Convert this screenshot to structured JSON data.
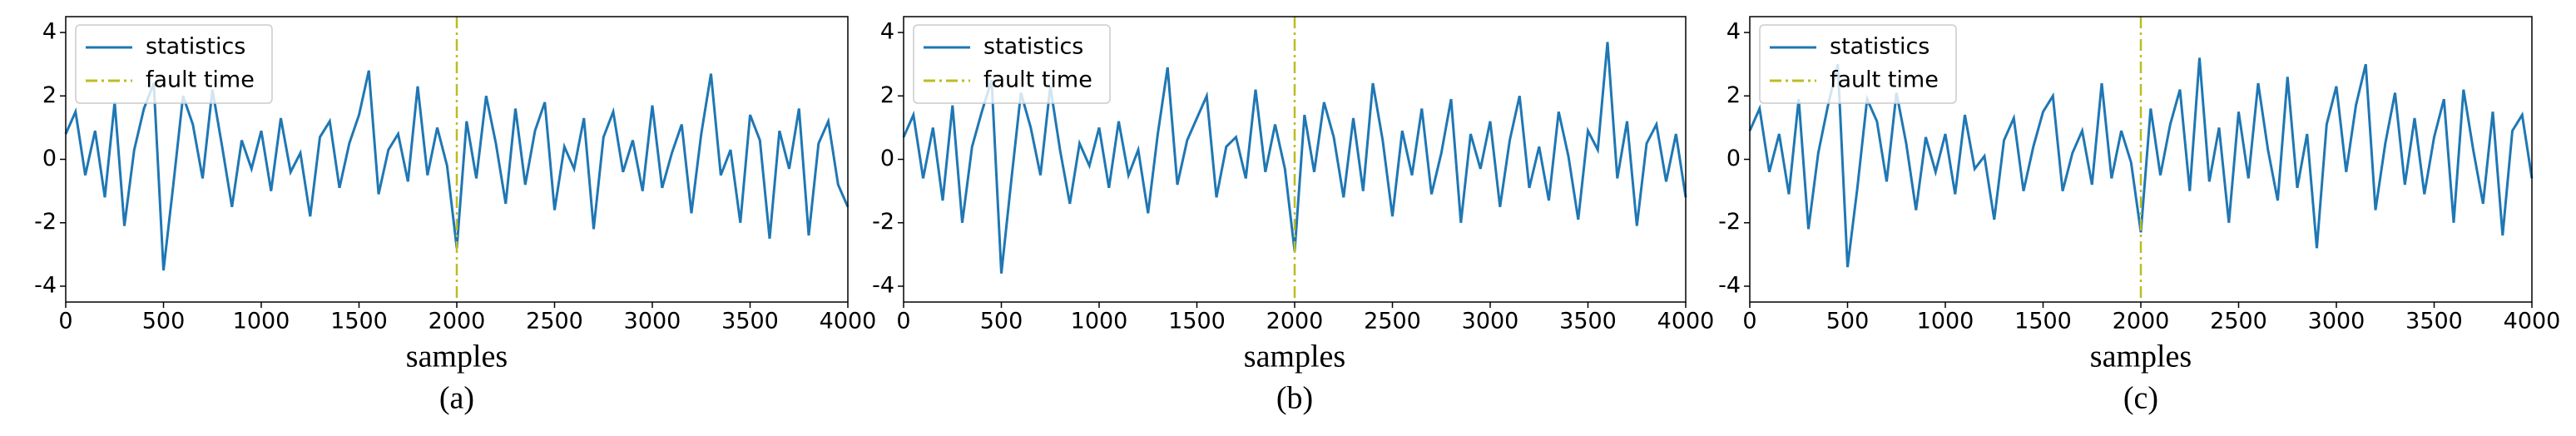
{
  "chart_data": [
    {
      "type": "line",
      "caption": "(a)",
      "xlabel": "samples",
      "x": [
        0,
        50,
        100,
        150,
        200,
        250,
        300,
        350,
        400,
        450,
        500,
        550,
        600,
        650,
        700,
        750,
        800,
        850,
        900,
        950,
        1000,
        1050,
        1100,
        1150,
        1200,
        1250,
        1300,
        1350,
        1400,
        1450,
        1500,
        1550,
        1600,
        1650,
        1700,
        1750,
        1800,
        1850,
        1900,
        1950,
        2000,
        2050,
        2100,
        2150,
        2200,
        2250,
        2300,
        2350,
        2400,
        2450,
        2500,
        2550,
        2600,
        2650,
        2700,
        2750,
        2800,
        2850,
        2900,
        2950,
        3000,
        3050,
        3100,
        3150,
        3200,
        3250,
        3300,
        3350,
        3400,
        3450,
        3500,
        3550,
        3600,
        3650,
        3700,
        3750,
        3800,
        3850,
        3900,
        3950,
        4000
      ],
      "series": [
        {
          "name": "statistics",
          "color": "#1f77b4",
          "values": [
            0.8,
            1.5,
            -0.5,
            0.9,
            -1.2,
            1.8,
            -2.1,
            0.3,
            1.6,
            2.4,
            -3.5,
            -0.8,
            2.0,
            1.1,
            -0.6,
            2.2,
            0.4,
            -1.5,
            0.6,
            -0.3,
            0.9,
            -1.0,
            1.3,
            -0.4,
            0.2,
            -1.8,
            0.7,
            1.2,
            -0.9,
            0.5,
            1.4,
            2.8,
            -1.1,
            0.3,
            0.8,
            -0.7,
            2.3,
            -0.5,
            1.0,
            -0.2,
            -2.8,
            1.2,
            -0.6,
            2.0,
            0.5,
            -1.4,
            1.6,
            -0.8,
            0.9,
            1.8,
            -1.6,
            0.4,
            -0.3,
            1.3,
            -2.2,
            0.7,
            1.5,
            -0.4,
            0.6,
            -1.0,
            1.7,
            -0.9,
            0.2,
            1.1,
            -1.7,
            0.8,
            2.7,
            -0.5,
            0.3,
            -2.0,
            1.4,
            0.6,
            -2.5,
            0.9,
            -0.3,
            1.6,
            -2.4,
            0.5,
            1.2,
            -0.8,
            -1.5
          ]
        }
      ],
      "vlines": [
        {
          "name": "fault time",
          "x": 2000,
          "color": "#bcbd22"
        }
      ],
      "xlim": [
        0,
        4000
      ],
      "xticks": [
        0,
        500,
        1000,
        1500,
        2000,
        2500,
        3000,
        3500,
        4000
      ],
      "ylim": [
        -4.5,
        4.5
      ],
      "yticks": [
        -4,
        -2,
        0,
        2,
        4
      ],
      "legend": "upper left"
    },
    {
      "type": "line",
      "caption": "(b)",
      "xlabel": "samples",
      "x": [
        0,
        50,
        100,
        150,
        200,
        250,
        300,
        350,
        400,
        450,
        500,
        550,
        600,
        650,
        700,
        750,
        800,
        850,
        900,
        950,
        1000,
        1050,
        1100,
        1150,
        1200,
        1250,
        1300,
        1350,
        1400,
        1450,
        1500,
        1550,
        1600,
        1650,
        1700,
        1750,
        1800,
        1850,
        1900,
        1950,
        2000,
        2050,
        2100,
        2150,
        2200,
        2250,
        2300,
        2350,
        2400,
        2450,
        2500,
        2550,
        2600,
        2650,
        2700,
        2750,
        2800,
        2850,
        2900,
        2950,
        3000,
        3050,
        3100,
        3150,
        3200,
        3250,
        3300,
        3350,
        3400,
        3450,
        3500,
        3550,
        3600,
        3650,
        3700,
        3750,
        3800,
        3850,
        3900,
        3950,
        4000
      ],
      "series": [
        {
          "name": "statistics",
          "color": "#1f77b4",
          "values": [
            0.7,
            1.4,
            -0.6,
            1.0,
            -1.3,
            1.7,
            -2.0,
            0.4,
            1.5,
            2.5,
            -3.6,
            -0.7,
            2.1,
            1.0,
            -0.5,
            2.3,
            0.3,
            -1.4,
            0.5,
            -0.2,
            1.0,
            -0.9,
            1.2,
            -0.5,
            0.3,
            -1.7,
            0.8,
            2.9,
            -0.8,
            0.6,
            1.3,
            2.0,
            -1.2,
            0.4,
            0.7,
            -0.6,
            2.2,
            -0.4,
            1.1,
            -0.3,
            -2.9,
            1.4,
            -0.4,
            1.8,
            0.7,
            -1.2,
            1.3,
            -1.0,
            2.4,
            0.6,
            -1.8,
            0.9,
            -0.5,
            1.6,
            -1.1,
            0.2,
            1.9,
            -2.0,
            0.8,
            -0.3,
            1.2,
            -1.5,
            0.6,
            2.0,
            -0.9,
            0.4,
            -1.3,
            1.5,
            0.1,
            -1.9,
            0.9,
            0.3,
            3.7,
            -0.6,
            1.2,
            -2.1,
            0.5,
            1.1,
            -0.7,
            0.8,
            -1.2
          ]
        }
      ],
      "vlines": [
        {
          "name": "fault time",
          "x": 2000,
          "color": "#bcbd22"
        }
      ],
      "xlim": [
        0,
        4000
      ],
      "xticks": [
        0,
        500,
        1000,
        1500,
        2000,
        2500,
        3000,
        3500,
        4000
      ],
      "ylim": [
        -4.5,
        4.5
      ],
      "yticks": [
        -4,
        -2,
        0,
        2,
        4
      ],
      "legend": "upper left"
    },
    {
      "type": "line",
      "caption": "(c)",
      "xlabel": "samples",
      "x": [
        0,
        50,
        100,
        150,
        200,
        250,
        300,
        350,
        400,
        450,
        500,
        550,
        600,
        650,
        700,
        750,
        800,
        850,
        900,
        950,
        1000,
        1050,
        1100,
        1150,
        1200,
        1250,
        1300,
        1350,
        1400,
        1450,
        1500,
        1550,
        1600,
        1650,
        1700,
        1750,
        1800,
        1850,
        1900,
        1950,
        2000,
        2050,
        2100,
        2150,
        2200,
        2250,
        2300,
        2350,
        2400,
        2450,
        2500,
        2550,
        2600,
        2650,
        2700,
        2750,
        2800,
        2850,
        2900,
        2950,
        3000,
        3050,
        3100,
        3150,
        3200,
        3250,
        3300,
        3350,
        3400,
        3450,
        3500,
        3550,
        3600,
        3650,
        3700,
        3750,
        3800,
        3850,
        3900,
        3950,
        4000
      ],
      "series": [
        {
          "name": "statistics",
          "color": "#1f77b4",
          "values": [
            0.9,
            1.6,
            -0.4,
            0.8,
            -1.1,
            1.9,
            -2.2,
            0.2,
            1.7,
            3.0,
            -3.4,
            -0.9,
            1.9,
            1.2,
            -0.7,
            2.1,
            0.5,
            -1.6,
            0.7,
            -0.4,
            0.8,
            -1.1,
            1.4,
            -0.3,
            0.1,
            -1.9,
            0.6,
            1.3,
            -1.0,
            0.4,
            1.5,
            2.0,
            -1.0,
            0.2,
            0.9,
            -0.8,
            2.4,
            -0.6,
            0.9,
            -0.1,
            -2.3,
            1.6,
            -0.5,
            1.1,
            2.2,
            -1.0,
            3.2,
            -0.7,
            1.0,
            -2.0,
            1.5,
            -0.6,
            2.4,
            0.3,
            -1.3,
            2.6,
            -0.9,
            0.8,
            -2.8,
            1.1,
            2.3,
            -0.4,
            1.7,
            3.0,
            -1.6,
            0.5,
            2.1,
            -0.8,
            1.3,
            -1.1,
            0.7,
            1.9,
            -2.0,
            2.2,
            0.3,
            -1.4,
            1.5,
            -2.4,
            0.9,
            1.4,
            -0.6
          ]
        }
      ],
      "vlines": [
        {
          "name": "fault time",
          "x": 2000,
          "color": "#bcbd22"
        }
      ],
      "xlim": [
        0,
        4000
      ],
      "xticks": [
        0,
        500,
        1000,
        1500,
        2000,
        2500,
        3000,
        3500,
        4000
      ],
      "ylim": [
        -4.5,
        4.5
      ],
      "yticks": [
        -4,
        -2,
        0,
        2,
        4
      ],
      "legend": "upper left"
    }
  ]
}
